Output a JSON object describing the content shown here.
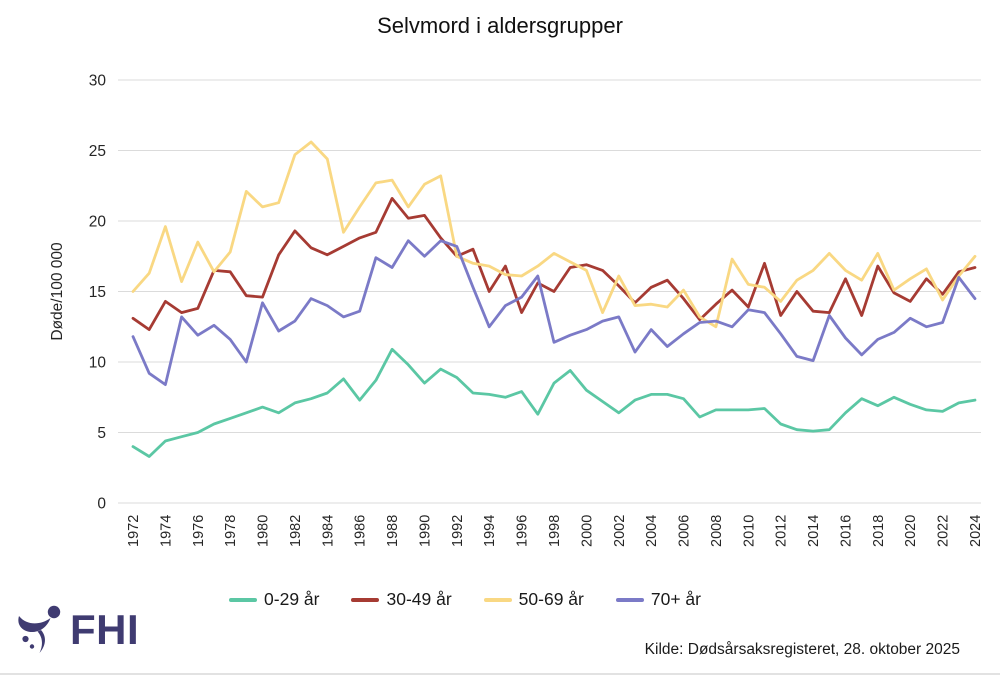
{
  "title": "Selvmord i aldersgrupper",
  "chart_data": {
    "type": "line",
    "title": "Selvmord i aldersgrupper",
    "xlabel": "",
    "ylabel": "Døde/100 000",
    "ylim": [
      0,
      30
    ],
    "yticks": [
      0,
      5,
      10,
      15,
      20,
      25,
      30
    ],
    "x_start": 1972,
    "x_end": 2024,
    "x_tick_step": 2,
    "grid": "horizontal",
    "legend_position": "bottom",
    "series": [
      {
        "id": "0-29",
        "name": "0-29 år",
        "color": "#5BC7A4",
        "values": [
          4.0,
          3.3,
          4.4,
          4.7,
          5.0,
          5.6,
          6.0,
          6.4,
          6.8,
          6.4,
          7.1,
          7.4,
          7.8,
          8.8,
          7.3,
          8.7,
          10.9,
          9.8,
          8.5,
          9.5,
          8.9,
          7.8,
          7.7,
          7.5,
          7.9,
          6.3,
          8.5,
          9.4,
          8.0,
          7.2,
          6.4,
          7.3,
          7.7,
          7.7,
          7.4,
          6.1,
          6.6,
          6.6,
          6.6,
          6.7,
          5.6,
          5.2,
          5.1,
          5.2,
          6.4,
          7.4,
          6.9,
          7.5,
          7.0,
          6.6,
          6.5,
          7.1,
          7.3
        ]
      },
      {
        "id": "30-49",
        "name": "30-49 år",
        "color": "#A63B33",
        "values": [
          13.1,
          12.3,
          14.3,
          13.5,
          13.8,
          16.5,
          16.4,
          14.7,
          14.6,
          17.6,
          19.3,
          18.1,
          17.6,
          18.2,
          18.8,
          19.2,
          21.6,
          20.2,
          20.4,
          18.8,
          17.5,
          18.0,
          15.0,
          16.8,
          13.5,
          15.6,
          15.0,
          16.7,
          16.9,
          16.5,
          15.4,
          14.2,
          15.3,
          15.8,
          14.5,
          13.0,
          14.1,
          15.1,
          13.9,
          17.0,
          13.3,
          15.0,
          13.6,
          13.5,
          15.9,
          13.3,
          16.8,
          14.9,
          14.3,
          15.9,
          14.8,
          16.4,
          16.7
        ]
      },
      {
        "id": "50-69",
        "name": "50-69 år",
        "color": "#F9D883",
        "values": [
          15.0,
          16.3,
          19.6,
          15.7,
          18.5,
          16.4,
          17.8,
          22.1,
          21.0,
          21.3,
          24.7,
          25.6,
          24.4,
          19.2,
          21.0,
          22.7,
          22.9,
          21.0,
          22.6,
          23.2,
          17.5,
          17.0,
          16.8,
          16.2,
          16.1,
          16.8,
          17.7,
          17.1,
          16.5,
          13.5,
          16.1,
          14.0,
          14.1,
          13.9,
          15.1,
          13.2,
          12.5,
          17.3,
          15.5,
          15.3,
          14.3,
          15.8,
          16.5,
          17.7,
          16.5,
          15.8,
          17.7,
          15.1,
          15.9,
          16.6,
          14.4,
          16.1,
          17.5
        ]
      },
      {
        "id": "70plus",
        "name": "70+ år",
        "color": "#7B7AC7",
        "values": [
          11.8,
          9.2,
          8.4,
          13.2,
          11.9,
          12.6,
          11.6,
          10.0,
          14.2,
          12.2,
          12.9,
          14.5,
          14.0,
          13.2,
          13.6,
          17.4,
          16.7,
          18.6,
          17.5,
          18.6,
          18.2,
          15.3,
          12.5,
          14.0,
          14.6,
          16.1,
          11.4,
          11.9,
          12.3,
          12.9,
          13.2,
          10.7,
          12.3,
          11.1,
          12.0,
          12.8,
          12.9,
          12.5,
          13.7,
          13.5,
          12.0,
          10.4,
          10.1,
          13.3,
          11.7,
          10.5,
          11.6,
          12.1,
          13.1,
          12.5,
          12.8,
          16.0,
          14.5
        ]
      }
    ]
  },
  "footer": {
    "logo_text": "FHI",
    "source": "Kilde: Dødsårsaksregisteret, 28. oktober 2025"
  },
  "colors": {
    "grid": "#DBDBDB",
    "axis_text": "#262626",
    "logo": "#3F3B71",
    "background": "#FFFFFF"
  }
}
